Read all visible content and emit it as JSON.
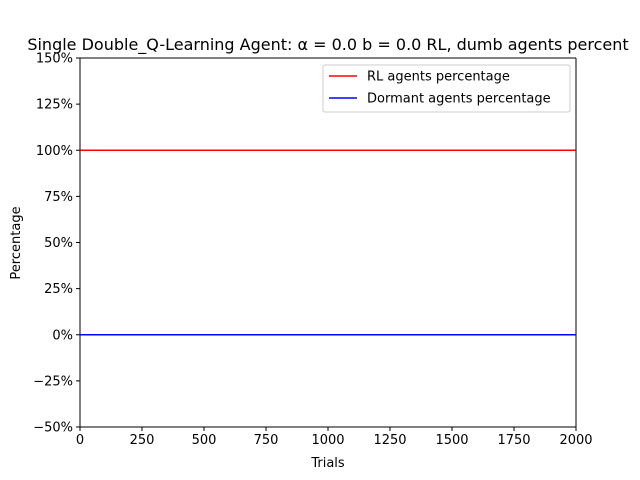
{
  "chart_data": {
    "type": "line",
    "title": "Single Double_Q-Learning Agent: α = 0.0 b = 0.0 RL, dumb agents percent",
    "xlabel": "Trials",
    "ylabel": "Percentage",
    "xlim": [
      0,
      2000
    ],
    "ylim": [
      -50,
      150
    ],
    "x_ticks": [
      0,
      250,
      500,
      750,
      1000,
      1250,
      1500,
      1750,
      2000
    ],
    "x_tick_labels": [
      "0",
      "250",
      "500",
      "750",
      "1000",
      "1250",
      "1500",
      "1750",
      "2000"
    ],
    "y_ticks": [
      -50,
      -25,
      0,
      25,
      50,
      75,
      100,
      125,
      150
    ],
    "y_tick_labels": [
      "−50%",
      "−25%",
      "0%",
      "25%",
      "50%",
      "75%",
      "100%",
      "125%",
      "150%"
    ],
    "grid": false,
    "legend_position": "top-right",
    "series": [
      {
        "name": "RL agents percentage",
        "color": "#ff0000",
        "x": [
          0,
          2000
        ],
        "y": [
          100,
          100
        ]
      },
      {
        "name": "Dormant agents percentage",
        "color": "#0000ff",
        "x": [
          0,
          2000
        ],
        "y": [
          0,
          0
        ]
      }
    ]
  }
}
